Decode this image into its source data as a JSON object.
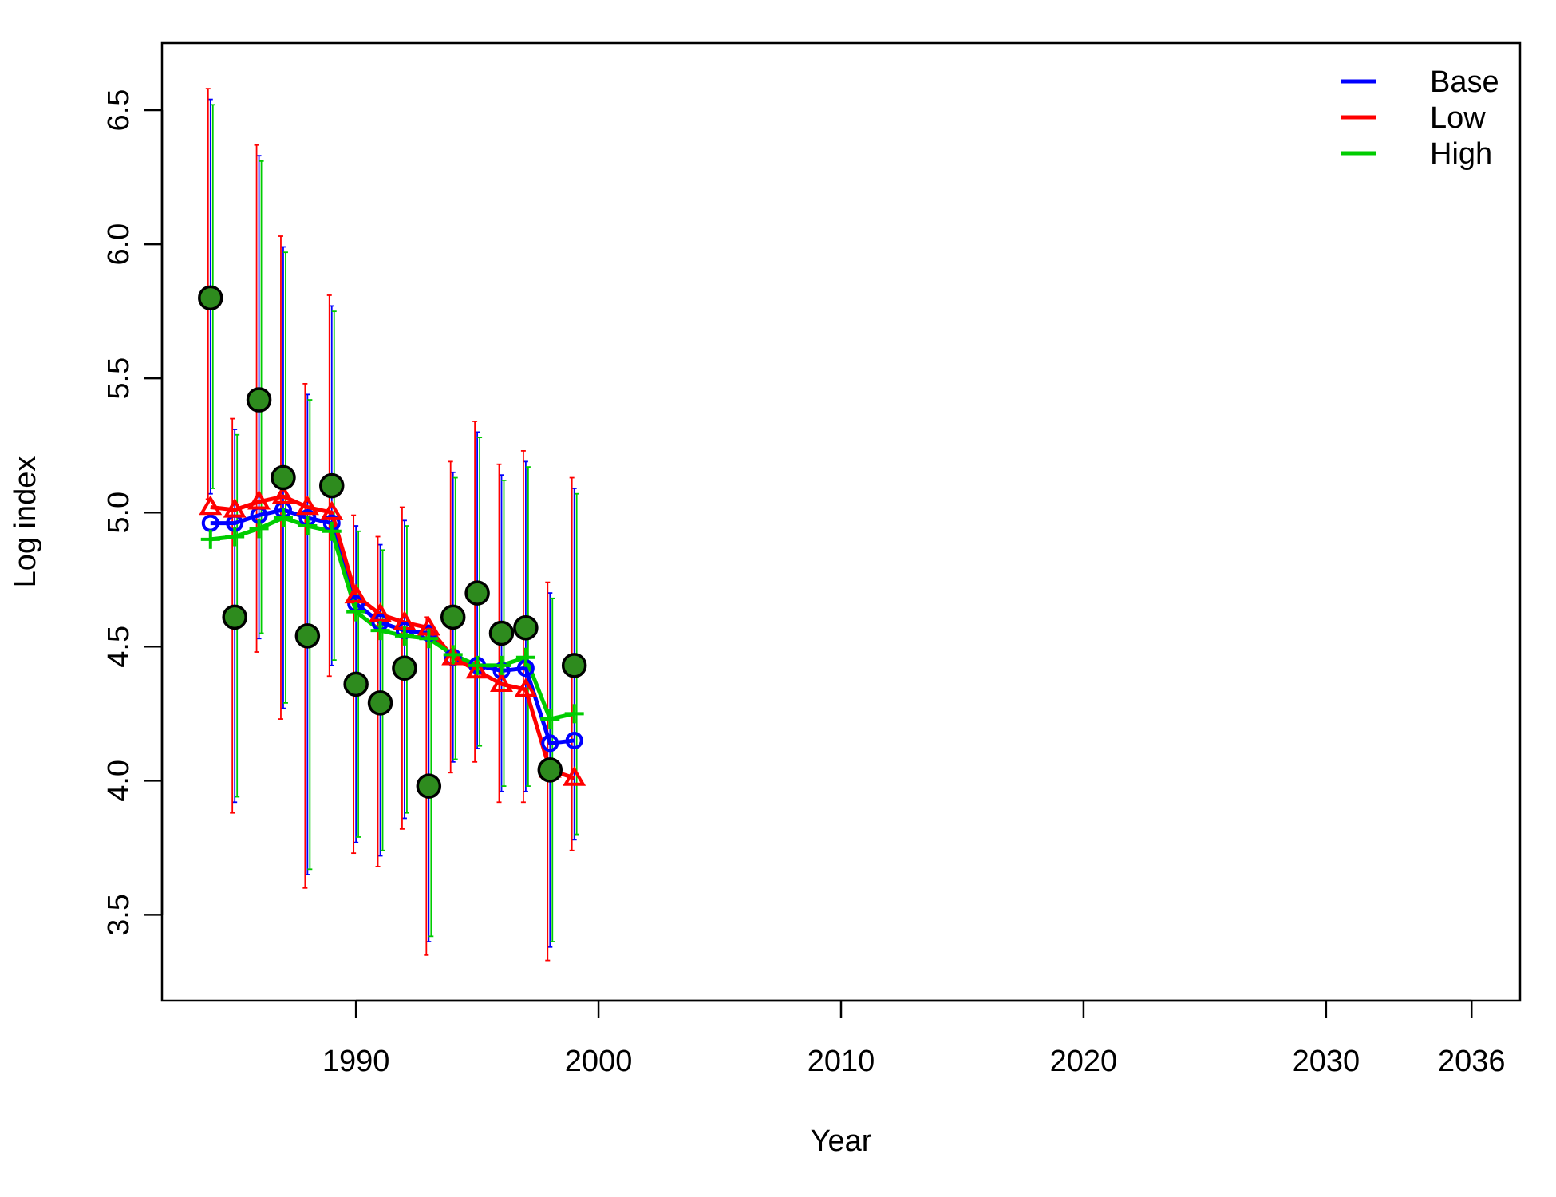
{
  "chart_data": {
    "type": "line",
    "title": "",
    "xlabel": "Year",
    "ylabel": "Log index",
    "xlim": [
      1982,
      2038
    ],
    "ylim": [
      3.18,
      6.75
    ],
    "x_ticks": [
      1990,
      2000,
      2010,
      2020,
      2030,
      2036
    ],
    "y_ticks": [
      3.5,
      4.0,
      4.5,
      5.0,
      5.5,
      6.0,
      6.5
    ],
    "grid": false,
    "legend_position": "top-right",
    "colors": {
      "Base": "#0000ff",
      "Low": "#ff0000",
      "High": "#00cc00",
      "observed_fill": "#2e8b1e"
    },
    "x": [
      1984,
      1985,
      1986,
      1987,
      1988,
      1989,
      1990,
      1991,
      1992,
      1993,
      1994,
      1995,
      1996,
      1997,
      1998,
      1999
    ],
    "observed": [
      5.8,
      4.61,
      5.42,
      5.13,
      4.54,
      5.1,
      4.36,
      4.29,
      4.42,
      3.98,
      4.61,
      4.7,
      4.55,
      4.57,
      4.04,
      4.43
    ],
    "series": [
      {
        "name": "Base",
        "color": "#0000ff",
        "marker": "circle",
        "values": [
          4.96,
          4.96,
          4.99,
          5.01,
          4.98,
          4.96,
          4.66,
          4.59,
          4.56,
          4.55,
          4.46,
          4.43,
          4.41,
          4.42,
          4.14,
          4.15
        ],
        "ci_lower": [
          5.07,
          3.92,
          4.53,
          4.27,
          3.65,
          4.43,
          3.77,
          3.72,
          3.86,
          3.4,
          4.07,
          4.12,
          3.96,
          3.96,
          3.38,
          3.78
        ],
        "ci_upper": [
          6.54,
          5.31,
          6.33,
          5.99,
          5.44,
          5.77,
          4.95,
          4.88,
          4.97,
          4.57,
          5.15,
          5.3,
          5.14,
          5.19,
          4.7,
          5.09
        ]
      },
      {
        "name": "Low",
        "color": "#ff0000",
        "marker": "triangle",
        "values": [
          5.02,
          5.01,
          5.04,
          5.06,
          5.02,
          5.0,
          4.69,
          4.62,
          4.59,
          4.57,
          4.46,
          4.41,
          4.36,
          4.34,
          4.04,
          4.01
        ],
        "ci_lower": [
          5.05,
          3.88,
          4.48,
          4.23,
          3.6,
          4.39,
          3.73,
          3.68,
          3.82,
          3.35,
          4.03,
          4.07,
          3.92,
          3.92,
          3.33,
          3.74
        ],
        "ci_upper": [
          6.58,
          5.35,
          6.37,
          6.03,
          5.48,
          5.81,
          4.99,
          4.91,
          5.02,
          4.61,
          5.19,
          5.34,
          5.18,
          5.23,
          4.74,
          5.13
        ]
      },
      {
        "name": "High",
        "color": "#00cc00",
        "marker": "plus",
        "values": [
          4.9,
          4.91,
          4.94,
          4.98,
          4.95,
          4.93,
          4.63,
          4.56,
          4.54,
          4.53,
          4.47,
          4.43,
          4.43,
          4.46,
          4.23,
          4.25
        ],
        "ci_lower": [
          5.09,
          3.94,
          4.55,
          4.29,
          3.67,
          4.45,
          3.79,
          3.74,
          3.88,
          3.42,
          4.08,
          4.13,
          3.98,
          3.98,
          3.4,
          3.8
        ],
        "ci_upper": [
          6.52,
          5.29,
          6.31,
          5.97,
          5.42,
          5.75,
          4.93,
          4.86,
          4.95,
          4.55,
          5.13,
          5.28,
          5.12,
          5.17,
          4.68,
          5.07
        ]
      }
    ]
  }
}
